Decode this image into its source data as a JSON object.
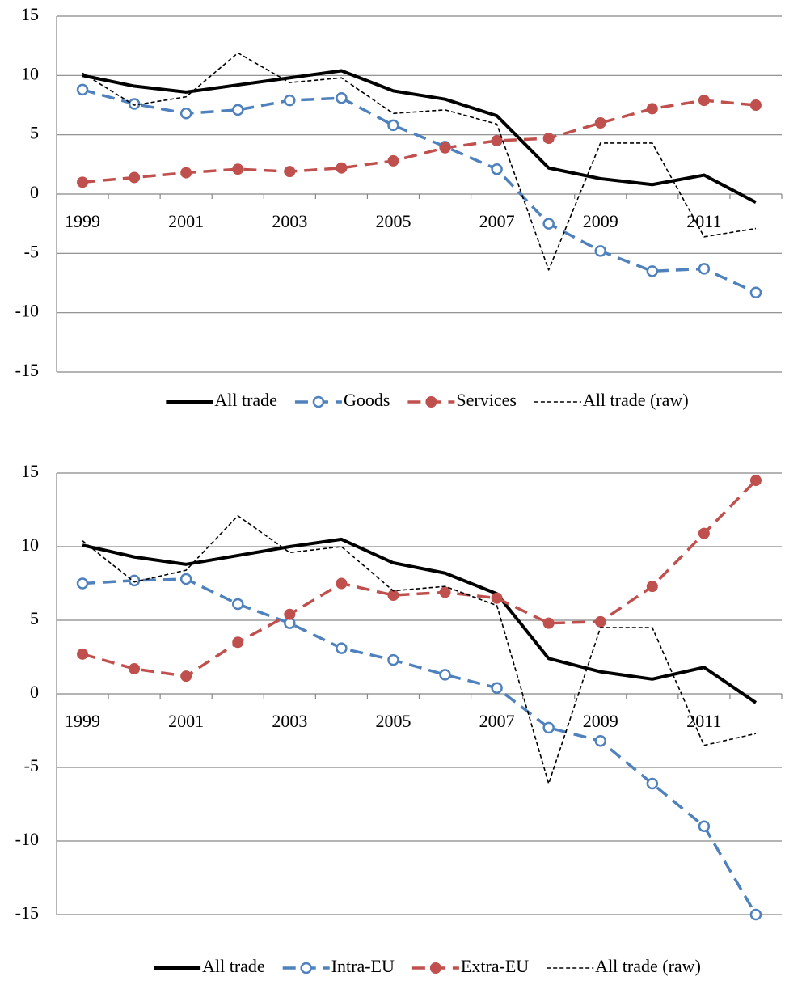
{
  "chart_data": [
    {
      "type": "line",
      "categories": [
        "1999",
        null,
        "2001",
        null,
        "2003",
        null,
        "2005",
        null,
        "2007",
        null,
        "2009",
        null,
        "2011",
        null
      ],
      "ylim": [
        -15,
        15
      ],
      "yticks": [
        -15,
        -10,
        -5,
        0,
        5,
        10,
        15
      ],
      "grid": true,
      "legend": "bottom",
      "series": [
        {
          "name": "All trade",
          "color": "#000000",
          "line_style": "solid",
          "marker": "none",
          "values": [
            10.0,
            9.1,
            8.6,
            9.2,
            9.8,
            10.4,
            8.7,
            8.0,
            6.6,
            2.2,
            1.3,
            0.8,
            1.6,
            -0.7
          ]
        },
        {
          "name": "Goods",
          "color": "#4f81bd",
          "line_style": "dashed",
          "marker": "open-circle",
          "values": [
            8.8,
            7.6,
            6.8,
            7.1,
            7.9,
            8.1,
            5.8,
            4.0,
            2.1,
            -2.5,
            -4.8,
            -6.5,
            -6.3,
            -8.3
          ]
        },
        {
          "name": "Services",
          "color": "#c0504d",
          "line_style": "dashed",
          "marker": "filled-circle",
          "values": [
            1.0,
            1.4,
            1.8,
            2.1,
            1.9,
            2.2,
            2.8,
            3.9,
            4.5,
            4.7,
            6.0,
            7.2,
            7.9,
            7.5
          ]
        },
        {
          "name": "All trade (raw)",
          "color": "#000000",
          "line_style": "dotted",
          "marker": "none",
          "values": [
            10.2,
            7.5,
            8.2,
            11.9,
            9.4,
            9.8,
            6.8,
            7.1,
            5.9,
            -6.4,
            4.3,
            4.3,
            -3.6,
            -2.9
          ]
        }
      ]
    },
    {
      "type": "line",
      "categories": [
        "1999",
        null,
        "2001",
        null,
        "2003",
        null,
        "2005",
        null,
        "2007",
        null,
        "2009",
        null,
        "2011",
        null
      ],
      "ylim": [
        -15,
        15
      ],
      "yticks": [
        -15,
        -10,
        -5,
        0,
        5,
        10,
        15
      ],
      "grid": true,
      "legend": "bottom",
      "series": [
        {
          "name": "All trade",
          "color": "#000000",
          "line_style": "solid",
          "marker": "none",
          "values": [
            10.1,
            9.3,
            8.8,
            9.4,
            10.0,
            10.5,
            8.9,
            8.2,
            6.8,
            2.4,
            1.5,
            1.0,
            1.8,
            -0.6
          ]
        },
        {
          "name": "Intra-EU",
          "color": "#4f81bd",
          "line_style": "dashed",
          "marker": "open-circle",
          "values": [
            7.5,
            7.7,
            7.8,
            6.1,
            4.8,
            3.1,
            2.3,
            1.3,
            0.4,
            -2.3,
            -3.2,
            -6.1,
            -9.0,
            -15.0
          ]
        },
        {
          "name": "Extra-EU",
          "color": "#c0504d",
          "line_style": "dashed",
          "marker": "filled-circle",
          "values": [
            2.7,
            1.7,
            1.2,
            3.5,
            5.4,
            7.5,
            6.7,
            6.9,
            6.5,
            4.8,
            4.9,
            7.3,
            10.9,
            14.5
          ]
        },
        {
          "name": "All trade (raw)",
          "color": "#000000",
          "line_style": "dotted",
          "marker": "none",
          "values": [
            10.4,
            7.6,
            8.4,
            12.1,
            9.6,
            10.0,
            7.0,
            7.3,
            6.0,
            -6.1,
            4.5,
            4.5,
            -3.5,
            -2.7
          ]
        }
      ]
    }
  ]
}
